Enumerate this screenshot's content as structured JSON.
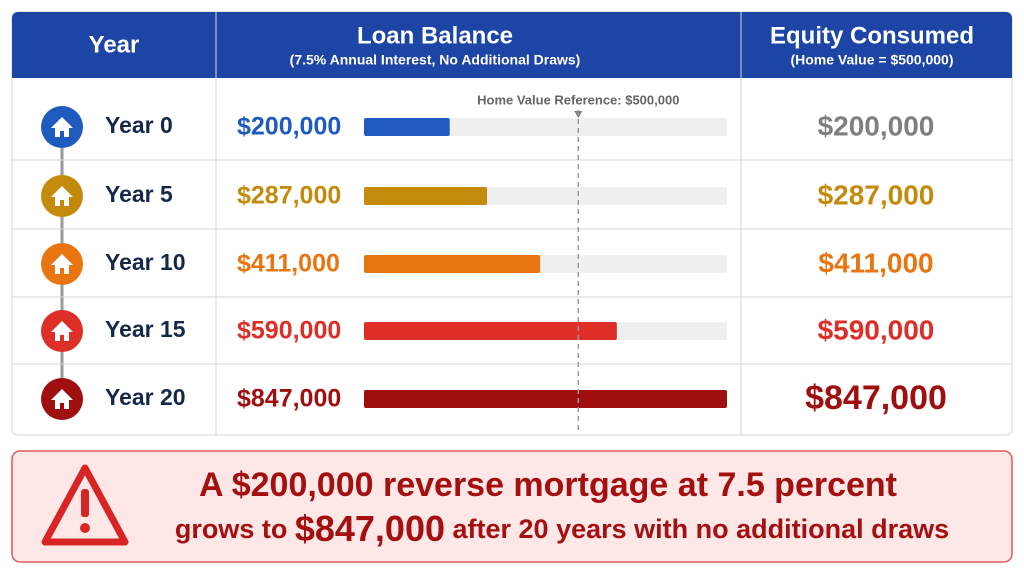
{
  "header": {
    "year": "Year",
    "loan_balance": "Loan Balance",
    "loan_balance_note": "(7.5% Annual Interest, No Additional Draws)",
    "equity": "Equity Consumed",
    "equity_note": "(Home Value = $500,000)"
  },
  "reference": {
    "label": "Home Value Reference: $500,000",
    "value": 500000
  },
  "rows": [
    {
      "year": "Year 0",
      "balance": {
        "value": 200000,
        "label": "$200,000"
      },
      "equity": "$200,000",
      "color": "#1f5bbf",
      "equity_color": "#7f7f7f"
    },
    {
      "year": "Year 5",
      "balance": {
        "value": 287000,
        "label": "$287,000"
      },
      "equity": "$287,000",
      "color": "#c48a0c",
      "equity_color": "#c48a0c"
    },
    {
      "year": "Year 10",
      "balance": {
        "value": 411000,
        "label": "$411,000"
      },
      "equity": "$411,000",
      "color": "#e8750f",
      "equity_color": "#e8750f"
    },
    {
      "year": "Year 15",
      "balance": {
        "value": 590000,
        "label": "$590,000"
      },
      "equity": "$590,000",
      "color": "#dd2e28",
      "equity_color": "#dd2e28"
    },
    {
      "year": "Year 20",
      "balance": {
        "value": 847000,
        "label": "$847,000"
      },
      "equity": "$847,000",
      "color": "#a00f10",
      "equity_color": "#a00f10"
    }
  ],
  "callout": {
    "line1": "A $200,000 reverse mortgage at 7.5 percent",
    "line2_start": "grows to",
    "line2_amount": "$847,000",
    "line2_end": "after 20 years with no additional draws"
  }
}
